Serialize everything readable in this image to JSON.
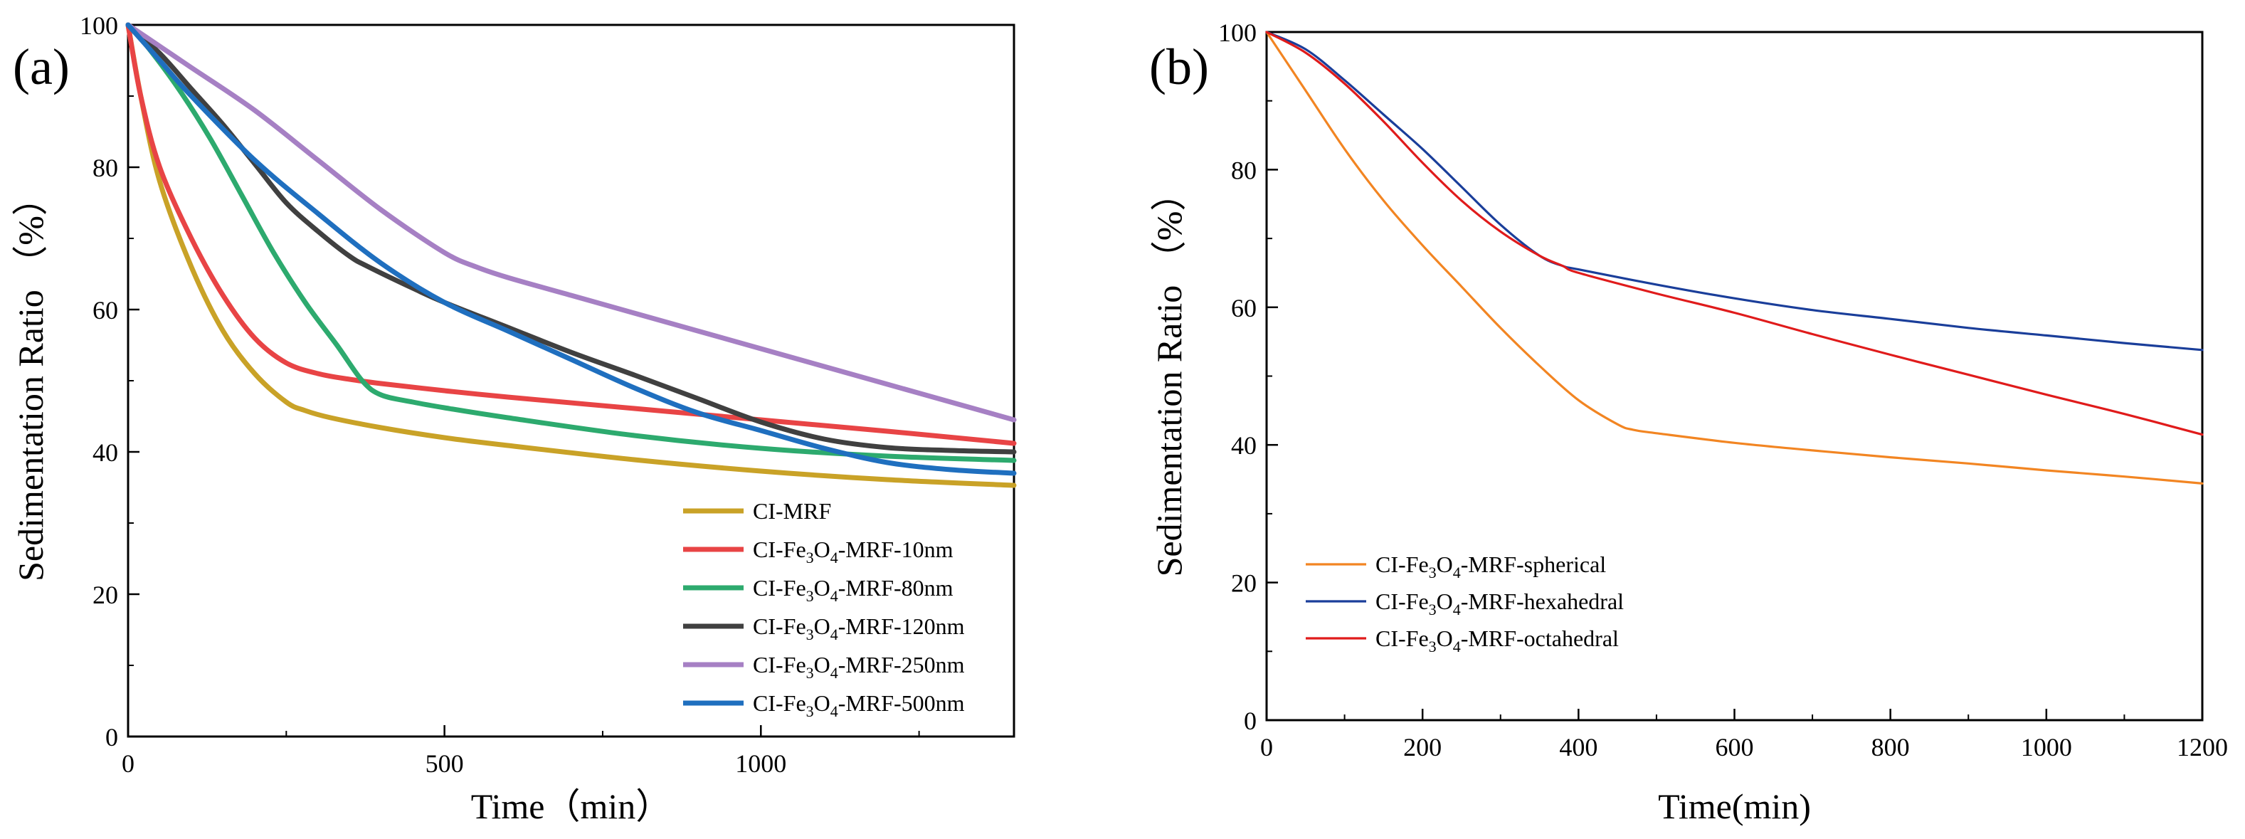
{
  "chart_data": [
    {
      "type": "line",
      "panel_label": "(a)",
      "xlabel": "Time（min）",
      "ylabel": "Sedimentation Ratio （%）",
      "xlim": [
        0,
        1400
      ],
      "ylim": [
        0,
        100
      ],
      "xticks": [
        0,
        500,
        1000
      ],
      "yticks": [
        0,
        20,
        40,
        60,
        80,
        100
      ],
      "legend_position": "lower-right",
      "series": [
        {
          "name": "CI-MRF",
          "legend_parts": [
            "CI-MRF"
          ],
          "color": "#C9A227",
          "x": [
            0,
            20,
            50,
            100,
            150,
            200,
            250,
            280,
            320,
            400,
            500,
            600,
            800,
            1000,
            1200,
            1400
          ],
          "y": [
            100,
            90,
            78,
            66,
            57,
            51,
            47,
            45.8,
            44.8,
            43.4,
            42,
            40.9,
            38.9,
            37.3,
            36.1,
            35.3
          ]
        },
        {
          "name": "CI-Fe3O4-MRF-10nm",
          "legend_parts": [
            "CI-Fe",
            "3",
            "O",
            "4",
            "-MRF-10nm"
          ],
          "color": "#E84445",
          "x": [
            0,
            20,
            50,
            100,
            150,
            200,
            250,
            300,
            350,
            400,
            500,
            600,
            800,
            1000,
            1200,
            1400
          ],
          "y": [
            100,
            90,
            80,
            70,
            62,
            56,
            52.5,
            51,
            50.2,
            49.6,
            48.6,
            47.7,
            46.1,
            44.5,
            42.9,
            41.2
          ]
        },
        {
          "name": "CI-Fe3O4-MRF-80nm",
          "legend_parts": [
            "CI-Fe",
            "3",
            "O",
            "4",
            "-MRF-80nm"
          ],
          "color": "#2DAA6E",
          "x": [
            0,
            30,
            80,
            130,
            180,
            230,
            280,
            330,
            370,
            400,
            450,
            500,
            600,
            800,
            1000,
            1200,
            1400
          ],
          "y": [
            100,
            97,
            91,
            84,
            76,
            68,
            61,
            55,
            50,
            48,
            47,
            46.2,
            44.8,
            42.3,
            40.5,
            39.4,
            38.8
          ]
        },
        {
          "name": "CI-Fe3O4-MRF-120nm",
          "legend_parts": [
            "CI-Fe",
            "3",
            "O",
            "4",
            "-MRF-120nm"
          ],
          "color": "#404040",
          "x": [
            0,
            50,
            100,
            150,
            200,
            250,
            300,
            350,
            380,
            450,
            500,
            600,
            700,
            800,
            900,
            1000,
            1100,
            1200,
            1300,
            1400
          ],
          "y": [
            100,
            96,
            91,
            86,
            80.5,
            75,
            71,
            67.5,
            66,
            63,
            61,
            57.5,
            54,
            50.8,
            47.5,
            44.2,
            41.8,
            40.6,
            40.2,
            40
          ]
        },
        {
          "name": "CI-Fe3O4-MRF-250nm",
          "legend_parts": [
            "CI-Fe",
            "3",
            "O",
            "4",
            "-MRF-250nm"
          ],
          "color": "#A680C4",
          "x": [
            0,
            50,
            100,
            200,
            300,
            400,
            500,
            550,
            600,
            700,
            800,
            900,
            1000,
            1100,
            1200,
            1300,
            1400
          ],
          "y": [
            100,
            97,
            94,
            88,
            81,
            74,
            68,
            66,
            64.5,
            62,
            59.5,
            57,
            54.5,
            52,
            49.5,
            47,
            44.5
          ]
        },
        {
          "name": "CI-Fe3O4-MRF-500nm",
          "legend_parts": [
            "CI-Fe",
            "3",
            "O",
            "4",
            "-MRF-500nm"
          ],
          "color": "#1F6FBF",
          "x": [
            0,
            50,
            100,
            200,
            300,
            400,
            500,
            600,
            700,
            800,
            900,
            1000,
            1100,
            1200,
            1300,
            1400
          ],
          "y": [
            100,
            95,
            90,
            81,
            73.5,
            66.5,
            61,
            57,
            53,
            49,
            45.5,
            43,
            40.5,
            38.5,
            37.5,
            37
          ]
        }
      ]
    },
    {
      "type": "line",
      "panel_label": "(b)",
      "xlabel": "Time(min)",
      "ylabel": "Sedimentation Ratio （%）",
      "xlim": [
        0,
        1200
      ],
      "ylim": [
        0,
        100
      ],
      "xticks": [
        0,
        200,
        400,
        600,
        800,
        1000,
        1200
      ],
      "yticks": [
        0,
        20,
        40,
        60,
        80,
        100
      ],
      "legend_position": "lower-left",
      "series": [
        {
          "name": "CI-Fe3O4-MRF-spherical",
          "legend_parts": [
            "CI-Fe",
            "3",
            "O",
            "4",
            "-MRF-spherical"
          ],
          "color": "#F28522",
          "x": [
            0,
            50,
            100,
            150,
            200,
            250,
            300,
            350,
            400,
            450,
            470,
            500,
            600,
            700,
            800,
            900,
            1000,
            1100,
            1200
          ],
          "y": [
            100,
            91.5,
            83,
            75.5,
            69,
            63,
            57,
            51.5,
            46.5,
            43,
            42.2,
            41.7,
            40.3,
            39.2,
            38.2,
            37.3,
            36.3,
            35.4,
            34.4
          ]
        },
        {
          "name": "CI-Fe3O4-MRF-hexahedral",
          "legend_parts": [
            "CI-Fe",
            "3",
            "O",
            "4",
            "-MRF-hexahedral"
          ],
          "color": "#1A3E9A",
          "x": [
            0,
            50,
            100,
            150,
            200,
            250,
            300,
            350,
            380,
            400,
            500,
            600,
            700,
            800,
            900,
            1000,
            1100,
            1200
          ],
          "y": [
            100,
            97.5,
            93,
            88,
            83,
            77.5,
            72,
            67.5,
            66,
            65.5,
            63.3,
            61.3,
            59.6,
            58.3,
            57,
            55.9,
            54.8,
            53.8
          ]
        },
        {
          "name": "CI-Fe3O4-MRF-octahedral",
          "legend_parts": [
            "CI-Fe",
            "3",
            "O",
            "4",
            "-MRF-octahedral"
          ],
          "color": "#E01B1B",
          "x": [
            0,
            50,
            100,
            150,
            200,
            250,
            300,
            350,
            380,
            400,
            500,
            600,
            700,
            800,
            900,
            1000,
            1100,
            1200
          ],
          "y": [
            100,
            97,
            92.5,
            87,
            81,
            75.5,
            71,
            67.5,
            66,
            65,
            62,
            59.2,
            56.1,
            53.1,
            50.2,
            47.3,
            44.5,
            41.5
          ]
        }
      ]
    }
  ]
}
